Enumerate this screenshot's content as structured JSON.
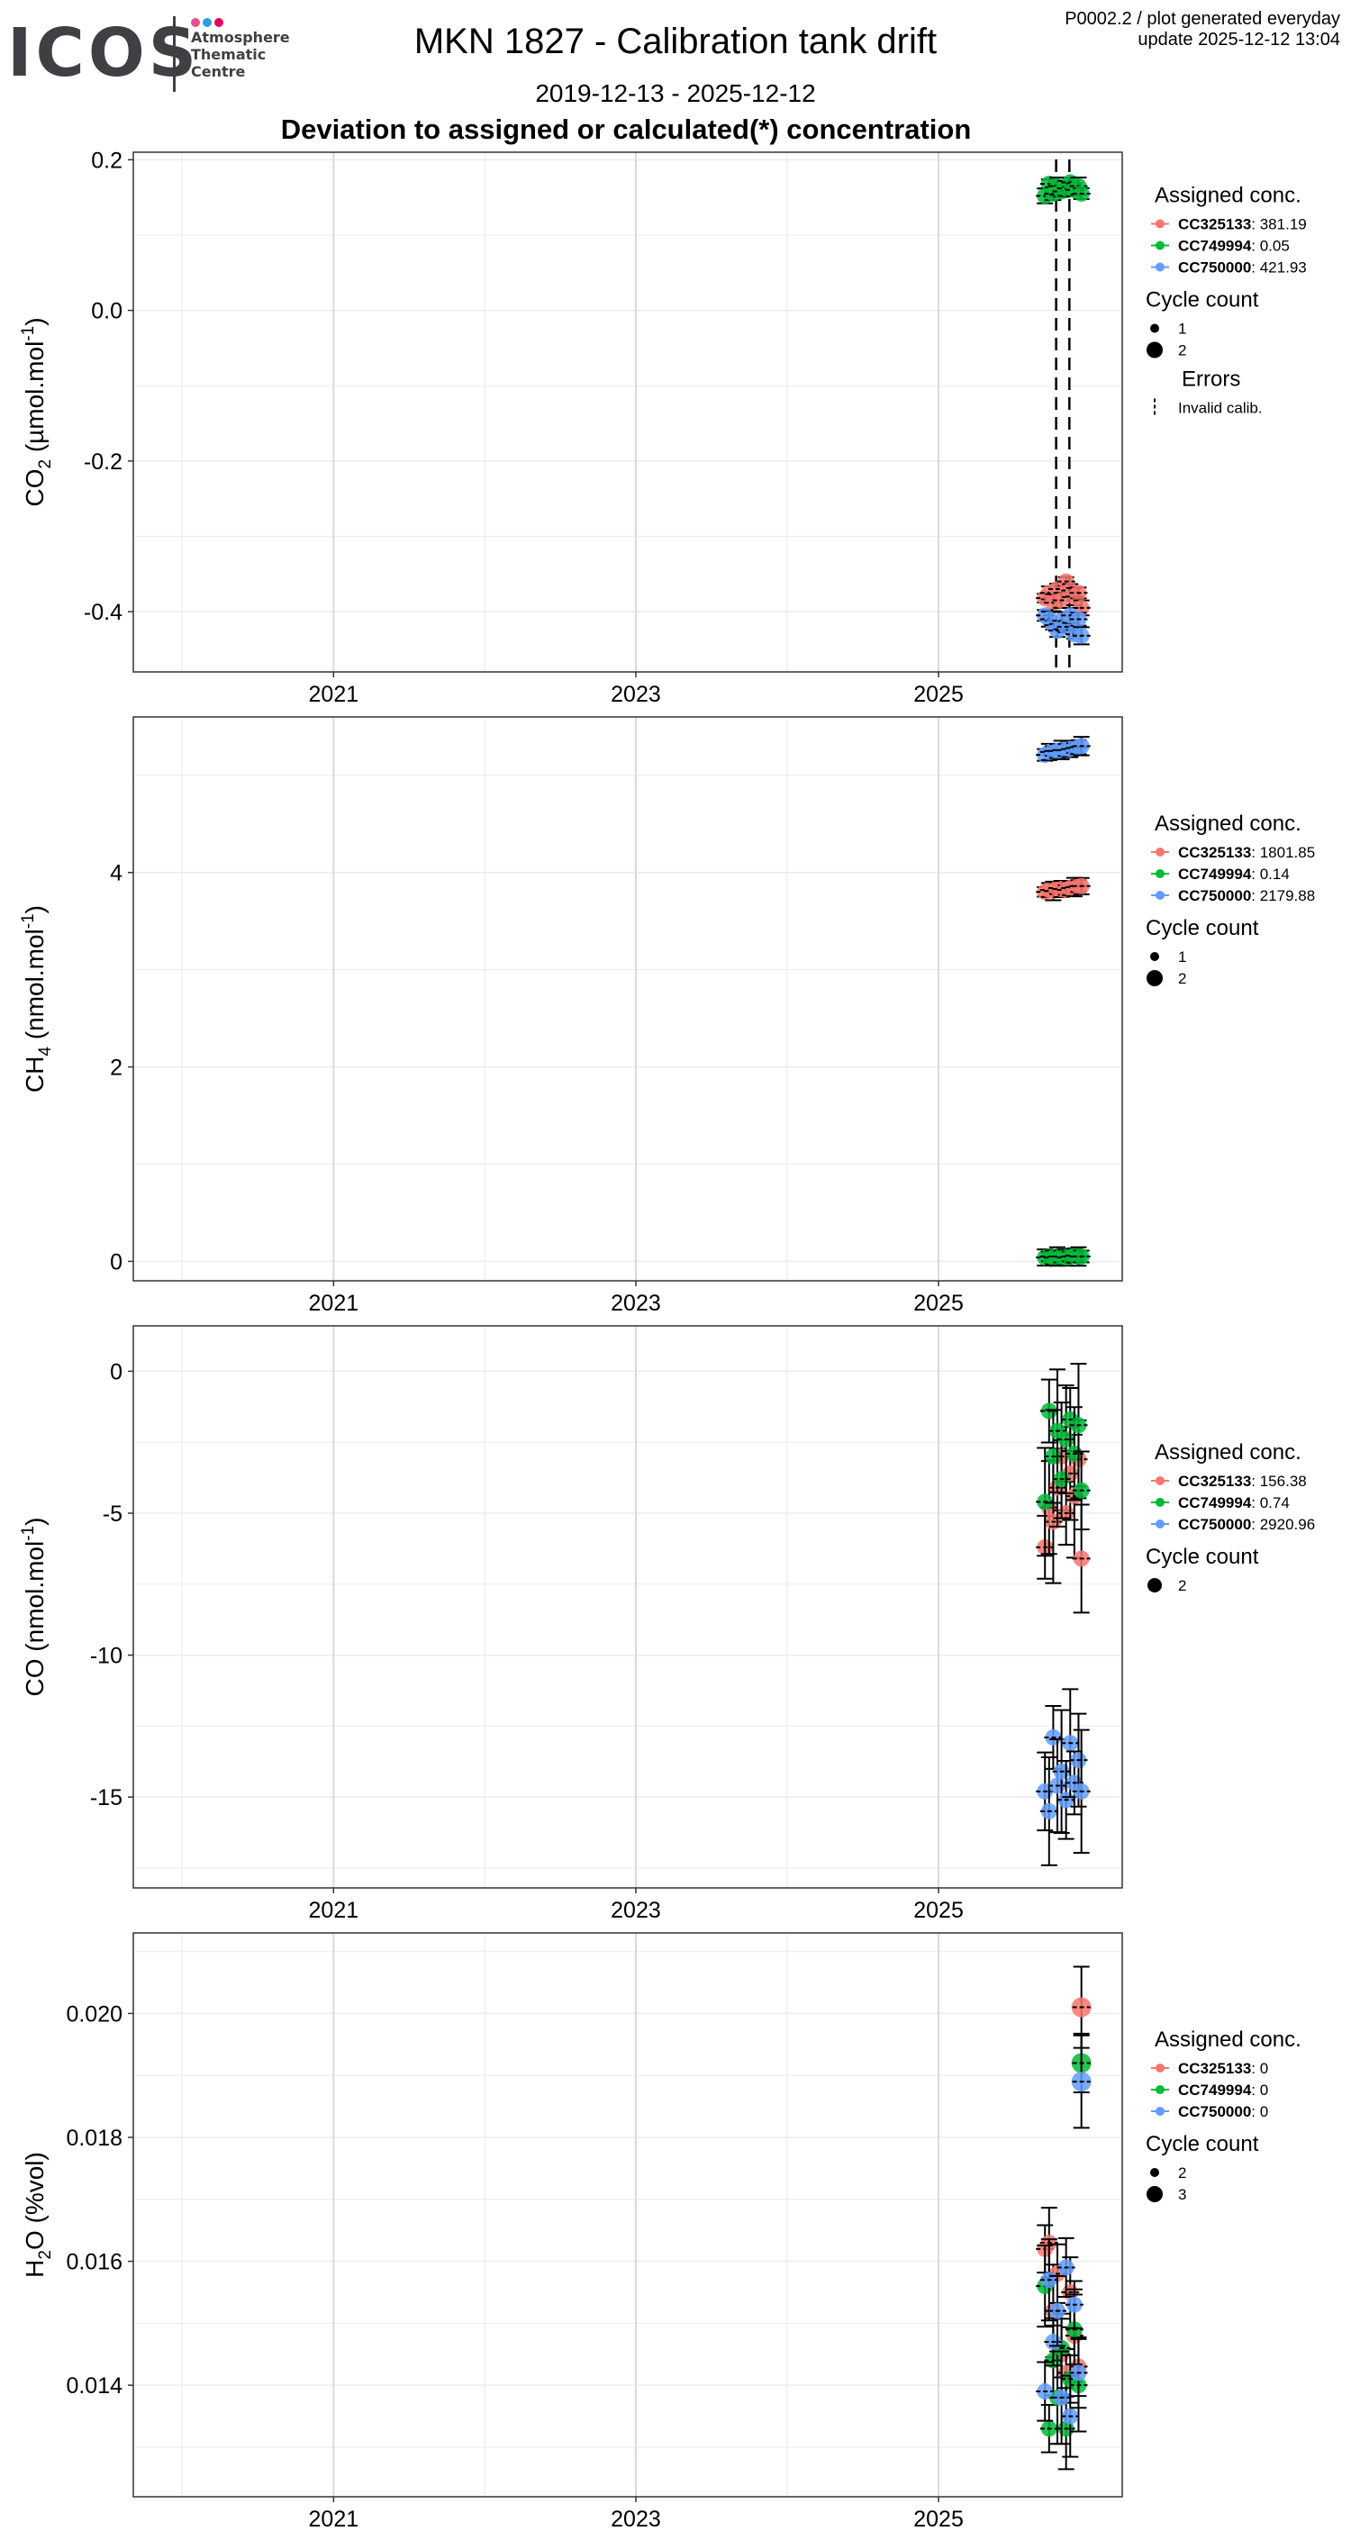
{
  "header": {
    "logo_word": "ICOS",
    "logo_lines": [
      "Atmosphere",
      "Thematic",
      "Centre"
    ],
    "logo_dot_colors": [
      "#e94e8d",
      "#2c9ed8",
      "#e6005c"
    ],
    "title": "MKN 1827 - Calibration tank drift",
    "subtitle": "2019-12-13 - 2025-12-12",
    "heading": "Deviation to assigned or calculated(*) concentration",
    "plot_info": "P0002.2 / plot generated everyday",
    "update": "update  2025-12-12 13:04"
  },
  "colors": {
    "CC325133": "#f8766d",
    "CC749994": "#00ba38",
    "CC750000": "#619cff",
    "grid_major": "#d9d9d9",
    "grid_minor": "#ebebeb",
    "error_bar": "#000000"
  },
  "chart_data": [
    {
      "type": "scatter",
      "gas": "CO",
      "sub": "2",
      "unit": "µmol.mol",
      "unit_exp": "-1",
      "x_ticks": [
        "2021",
        "2023",
        "2025"
      ],
      "y_ticks": [
        "0.2",
        "0.0",
        "-0.2",
        "-0.4"
      ],
      "y_tick_values": [
        0.2,
        0.0,
        -0.2,
        -0.4
      ],
      "ylim": [
        -0.48,
        0.21
      ],
      "grid": true,
      "legend_position": "right",
      "legend_title": "Assigned conc.",
      "series": [
        {
          "name": "CC325133",
          "assigned": "381.19",
          "points": [
            [
              "2025-09-15",
              -0.382
            ],
            [
              "2025-09-25",
              -0.375
            ],
            [
              "2025-10-05",
              -0.388
            ],
            [
              "2025-10-15",
              -0.37
            ],
            [
              "2025-10-25",
              -0.385
            ],
            [
              "2025-11-05",
              -0.36
            ],
            [
              "2025-11-15",
              -0.372
            ],
            [
              "2025-11-25",
              -0.38
            ],
            [
              "2025-12-05",
              -0.375
            ],
            [
              "2025-12-12",
              -0.395
            ]
          ]
        },
        {
          "name": "CC749994",
          "assigned": "0.05",
          "points": [
            [
              "2025-09-15",
              0.152
            ],
            [
              "2025-09-25",
              0.168
            ],
            [
              "2025-10-05",
              0.155
            ],
            [
              "2025-10-15",
              0.165
            ],
            [
              "2025-10-25",
              0.158
            ],
            [
              "2025-11-05",
              0.162
            ],
            [
              "2025-11-15",
              0.17
            ],
            [
              "2025-11-25",
              0.16
            ],
            [
              "2025-12-05",
              0.165
            ],
            [
              "2025-12-12",
              0.155
            ]
          ]
        },
        {
          "name": "CC750000",
          "assigned": "421.93",
          "points": [
            [
              "2025-09-15",
              -0.405
            ],
            [
              "2025-09-25",
              -0.41
            ],
            [
              "2025-10-05",
              -0.418
            ],
            [
              "2025-10-15",
              -0.425
            ],
            [
              "2025-10-25",
              -0.412
            ],
            [
              "2025-11-05",
              -0.42
            ],
            [
              "2025-11-15",
              -0.405
            ],
            [
              "2025-11-25",
              -0.43
            ],
            [
              "2025-12-05",
              -0.41
            ],
            [
              "2025-12-12",
              -0.432
            ]
          ]
        }
      ],
      "invalid_calib_dates": [
        "2025-10-12",
        "2025-11-13"
      ],
      "cycle_count": [
        "1",
        "2"
      ],
      "errors": {
        "title": "Errors",
        "label": "Invalid calib."
      }
    },
    {
      "type": "scatter",
      "gas": "CH",
      "sub": "4",
      "unit": "nmol.mol",
      "unit_exp": "-1",
      "x_ticks": [
        "2021",
        "2023",
        "2025"
      ],
      "y_ticks": [
        "4",
        "2",
        "0"
      ],
      "y_tick_values": [
        4,
        2,
        0
      ],
      "ylim": [
        -0.2,
        5.6
      ],
      "grid": true,
      "legend_position": "right",
      "legend_title": "Assigned conc.",
      "series": [
        {
          "name": "CC325133",
          "assigned": "1801.85",
          "points": [
            [
              "2025-09-15",
              3.8
            ],
            [
              "2025-09-25",
              3.82
            ],
            [
              "2025-10-05",
              3.81
            ],
            [
              "2025-10-15",
              3.84
            ],
            [
              "2025-10-25",
              3.83
            ],
            [
              "2025-11-05",
              3.82
            ],
            [
              "2025-11-15",
              3.84
            ],
            [
              "2025-11-25",
              3.85
            ],
            [
              "2025-12-05",
              3.86
            ],
            [
              "2025-12-12",
              3.86
            ]
          ]
        },
        {
          "name": "CC749994",
          "assigned": "0.14",
          "points": [
            [
              "2025-09-15",
              0.04
            ],
            [
              "2025-09-25",
              0.05
            ],
            [
              "2025-10-05",
              0.04
            ],
            [
              "2025-10-15",
              0.05
            ],
            [
              "2025-10-25",
              0.05
            ],
            [
              "2025-11-05",
              0.04
            ],
            [
              "2025-11-15",
              0.05
            ],
            [
              "2025-11-25",
              0.06
            ],
            [
              "2025-12-05",
              0.05
            ],
            [
              "2025-12-12",
              0.05
            ]
          ]
        },
        {
          "name": "CC750000",
          "assigned": "2179.88",
          "points": [
            [
              "2025-09-15",
              5.21
            ],
            [
              "2025-09-25",
              5.24
            ],
            [
              "2025-10-05",
              5.25
            ],
            [
              "2025-10-15",
              5.25
            ],
            [
              "2025-10-25",
              5.26
            ],
            [
              "2025-11-05",
              5.26
            ],
            [
              "2025-11-15",
              5.27
            ],
            [
              "2025-11-25",
              5.28
            ],
            [
              "2025-12-05",
              5.29
            ],
            [
              "2025-12-12",
              5.3
            ]
          ]
        }
      ],
      "invalid_calib_dates": [],
      "cycle_count": [
        "1",
        "2"
      ]
    },
    {
      "type": "scatter",
      "gas": "CO",
      "sub": "",
      "unit": "nmol.mol",
      "unit_exp": "-1",
      "x_ticks": [
        "2021",
        "2023",
        "2025"
      ],
      "y_ticks": [
        "0",
        "-5",
        "-10",
        "-15"
      ],
      "y_tick_values": [
        0,
        -5,
        -10,
        -15
      ],
      "ylim": [
        -18.2,
        1.6
      ],
      "grid": true,
      "legend_position": "right",
      "legend_title": "Assigned conc.",
      "series": [
        {
          "name": "CC325133",
          "assigned": "156.38",
          "points": [
            [
              "2025-09-15",
              -6.2
            ],
            [
              "2025-09-25",
              -4.8
            ],
            [
              "2025-10-05",
              -5.3
            ],
            [
              "2025-10-15",
              -4.1
            ],
            [
              "2025-10-25",
              -3.0
            ],
            [
              "2025-11-05",
              -5.0
            ],
            [
              "2025-11-15",
              -3.6
            ],
            [
              "2025-11-25",
              -4.4
            ],
            [
              "2025-12-05",
              -3.1
            ],
            [
              "2025-12-12",
              -6.6
            ]
          ]
        },
        {
          "name": "CC749994",
          "assigned": "0.74",
          "points": [
            [
              "2025-09-15",
              -4.6
            ],
            [
              "2025-09-25",
              -1.4
            ],
            [
              "2025-10-05",
              -3.0
            ],
            [
              "2025-10-15",
              -2.1
            ],
            [
              "2025-10-25",
              -3.8
            ],
            [
              "2025-11-05",
              -2.4
            ],
            [
              "2025-11-15",
              -1.7
            ],
            [
              "2025-11-25",
              -2.9
            ],
            [
              "2025-12-05",
              -1.9
            ],
            [
              "2025-12-12",
              -4.2
            ]
          ]
        },
        {
          "name": "CC750000",
          "assigned": "2920.96",
          "points": [
            [
              "2025-09-15",
              -14.8
            ],
            [
              "2025-09-25",
              -15.5
            ],
            [
              "2025-10-05",
              -12.9
            ],
            [
              "2025-10-15",
              -14.6
            ],
            [
              "2025-10-25",
              -14.1
            ],
            [
              "2025-11-05",
              -15.1
            ],
            [
              "2025-11-15",
              -13.1
            ],
            [
              "2025-11-25",
              -14.5
            ],
            [
              "2025-12-05",
              -13.7
            ],
            [
              "2025-12-12",
              -14.8
            ]
          ]
        }
      ],
      "invalid_calib_dates": [],
      "cycle_count": [
        "2"
      ]
    },
    {
      "type": "scatter",
      "gas": "H",
      "sub": "2",
      "gas_suffix": "O",
      "unit": "%vol",
      "unit_exp": "",
      "x_ticks": [
        "2021",
        "2023",
        "2025"
      ],
      "y_ticks": [
        "0.020",
        "0.018",
        "0.016",
        "0.014"
      ],
      "y_tick_values": [
        0.02,
        0.018,
        0.016,
        0.014
      ],
      "ylim": [
        0.0122,
        0.0213
      ],
      "grid": true,
      "legend_position": "right",
      "legend_title": "Assigned conc.",
      "series": [
        {
          "name": "CC325133",
          "assigned": "0",
          "points": [
            [
              "2025-09-15",
              0.0162
            ],
            [
              "2025-09-25",
              0.0163
            ],
            [
              "2025-10-05",
              0.0152
            ],
            [
              "2025-10-15",
              0.0158
            ],
            [
              "2025-10-25",
              0.0145
            ],
            [
              "2025-11-05",
              0.0142
            ],
            [
              "2025-11-15",
              0.0155
            ],
            [
              "2025-11-25",
              0.0148
            ],
            [
              "2025-12-05",
              0.0143
            ],
            [
              "2025-12-12",
              0.0201
            ]
          ]
        },
        {
          "name": "CC749994",
          "assigned": "0",
          "points": [
            [
              "2025-09-15",
              0.0156
            ],
            [
              "2025-09-25",
              0.0133
            ],
            [
              "2025-10-05",
              0.0144
            ],
            [
              "2025-10-15",
              0.0138
            ],
            [
              "2025-10-25",
              0.0146
            ],
            [
              "2025-11-05",
              0.0133
            ],
            [
              "2025-11-15",
              0.0141
            ],
            [
              "2025-11-25",
              0.0149
            ],
            [
              "2025-12-05",
              0.014
            ],
            [
              "2025-12-12",
              0.0192
            ]
          ]
        },
        {
          "name": "CC750000",
          "assigned": "0",
          "points": [
            [
              "2025-09-15",
              0.0139
            ],
            [
              "2025-09-25",
              0.0157
            ],
            [
              "2025-10-05",
              0.0147
            ],
            [
              "2025-10-15",
              0.0152
            ],
            [
              "2025-10-25",
              0.0138
            ],
            [
              "2025-11-05",
              0.0159
            ],
            [
              "2025-11-15",
              0.0135
            ],
            [
              "2025-11-25",
              0.0153
            ],
            [
              "2025-12-05",
              0.0142
            ],
            [
              "2025-12-12",
              0.0189
            ]
          ]
        }
      ],
      "invalid_calib_dates": [],
      "cycle_count": [
        "2",
        "3"
      ]
    }
  ]
}
